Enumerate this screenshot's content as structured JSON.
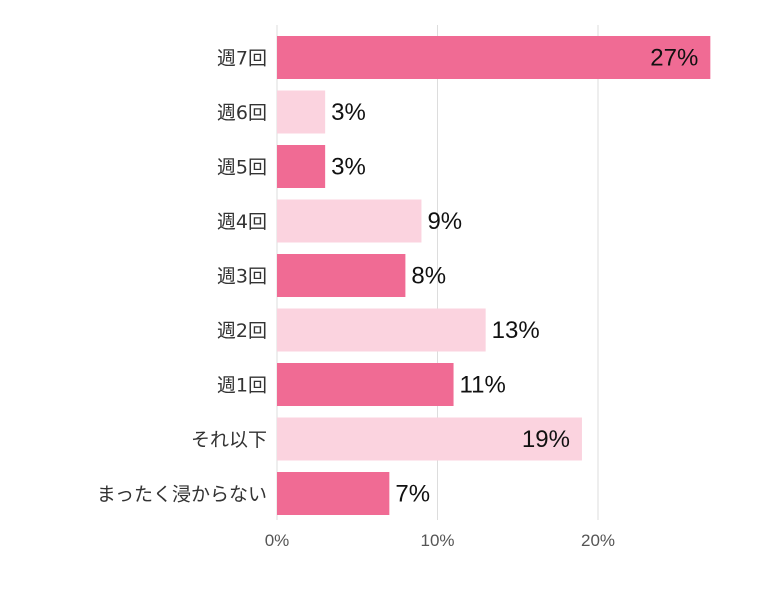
{
  "chart_data": {
    "type": "bar",
    "orientation": "horizontal",
    "categories": [
      "週7回",
      "週6回",
      "週5回",
      "週4回",
      "週3回",
      "週2回",
      "週1回",
      "それ以下",
      "まったく浸からない"
    ],
    "values": [
      27,
      3,
      3,
      9,
      8,
      13,
      11,
      19,
      7
    ],
    "value_labels": [
      "27%",
      "3%",
      "3%",
      "9%",
      "8%",
      "13%",
      "11%",
      "19%",
      "7%"
    ],
    "xlim": [
      0,
      27
    ],
    "x_ticks": [
      0,
      10,
      20
    ],
    "x_tick_labels": [
      "0%",
      "10%",
      "20%"
    ],
    "title": "",
    "xlabel": "",
    "ylabel": "",
    "grid": "vertical",
    "colors": {
      "dark": "#f06b94",
      "light": "#fbd3df",
      "grid": "#dddddd"
    },
    "bar_colors": [
      "dark",
      "light",
      "dark",
      "light",
      "dark",
      "light",
      "dark",
      "light",
      "dark"
    ]
  }
}
